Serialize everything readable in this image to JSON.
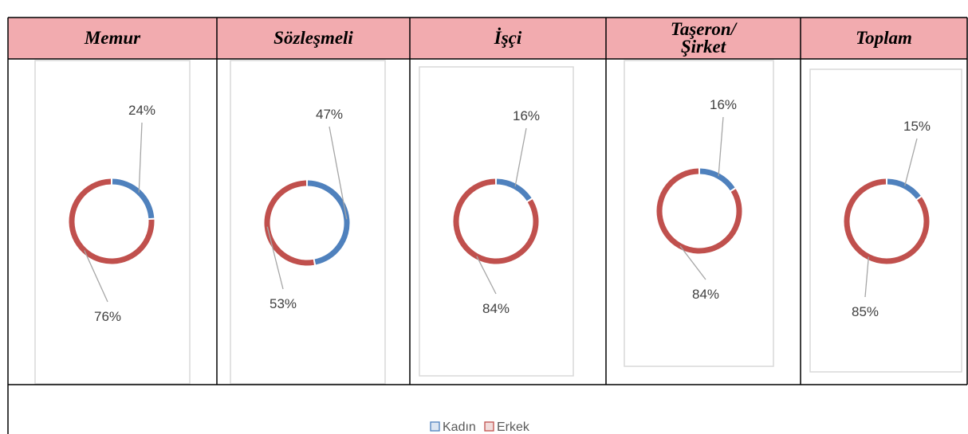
{
  "chart_data": [
    {
      "type": "donut",
      "title": "Memur",
      "categories": [
        "Kadın",
        "Erkek"
      ],
      "values": [
        24,
        76
      ],
      "value_labels": [
        "24%",
        "76%"
      ],
      "colors": [
        "#4f81bd",
        "#c0504d"
      ]
    },
    {
      "type": "donut",
      "title": "Sözleşmeli",
      "categories": [
        "Kadın",
        "Erkek"
      ],
      "values": [
        47,
        53
      ],
      "value_labels": [
        "47%",
        "53%"
      ],
      "colors": [
        "#4f81bd",
        "#c0504d"
      ]
    },
    {
      "type": "donut",
      "title": "İşçi",
      "categories": [
        "Kadın",
        "Erkek"
      ],
      "values": [
        16,
        84
      ],
      "value_labels": [
        "16%",
        "84%"
      ],
      "colors": [
        "#4f81bd",
        "#c0504d"
      ]
    },
    {
      "type": "donut",
      "title": "Taşeron/\nŞirket",
      "categories": [
        "Kadın",
        "Erkek"
      ],
      "values": [
        16,
        84
      ],
      "value_labels": [
        "16%",
        "84%"
      ],
      "colors": [
        "#4f81bd",
        "#c0504d"
      ]
    },
    {
      "type": "donut",
      "title": "Toplam",
      "categories": [
        "Kadın",
        "Erkek"
      ],
      "values": [
        15,
        85
      ],
      "value_labels": [
        "15%",
        "85%"
      ],
      "colors": [
        "#4f81bd",
        "#c0504d"
      ]
    }
  ]
}
